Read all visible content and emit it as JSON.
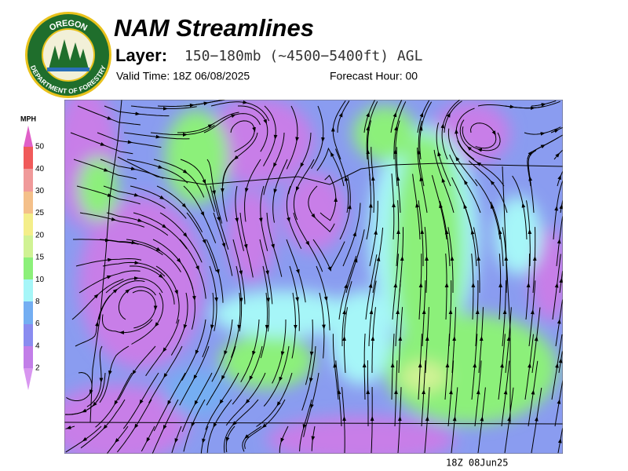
{
  "logo": {
    "top_text": "OREGON",
    "bottom_text": "DEPARTMENT OF FORESTRY"
  },
  "header": {
    "title": "NAM Streamlines",
    "layer_label": "Layer:",
    "layer_value": "150−180mb (~4500−5400ft) AGL",
    "valid_time": "Valid Time: 18Z 06/08/2025",
    "forecast_hour": "Forecast Hour: 00"
  },
  "legend": {
    "title": "MPH",
    "ticks": [
      50,
      40,
      30,
      25,
      20,
      15,
      10,
      8,
      6,
      4,
      2
    ]
  },
  "footer": {
    "timestamp": "18Z 08Jun25"
  }
}
